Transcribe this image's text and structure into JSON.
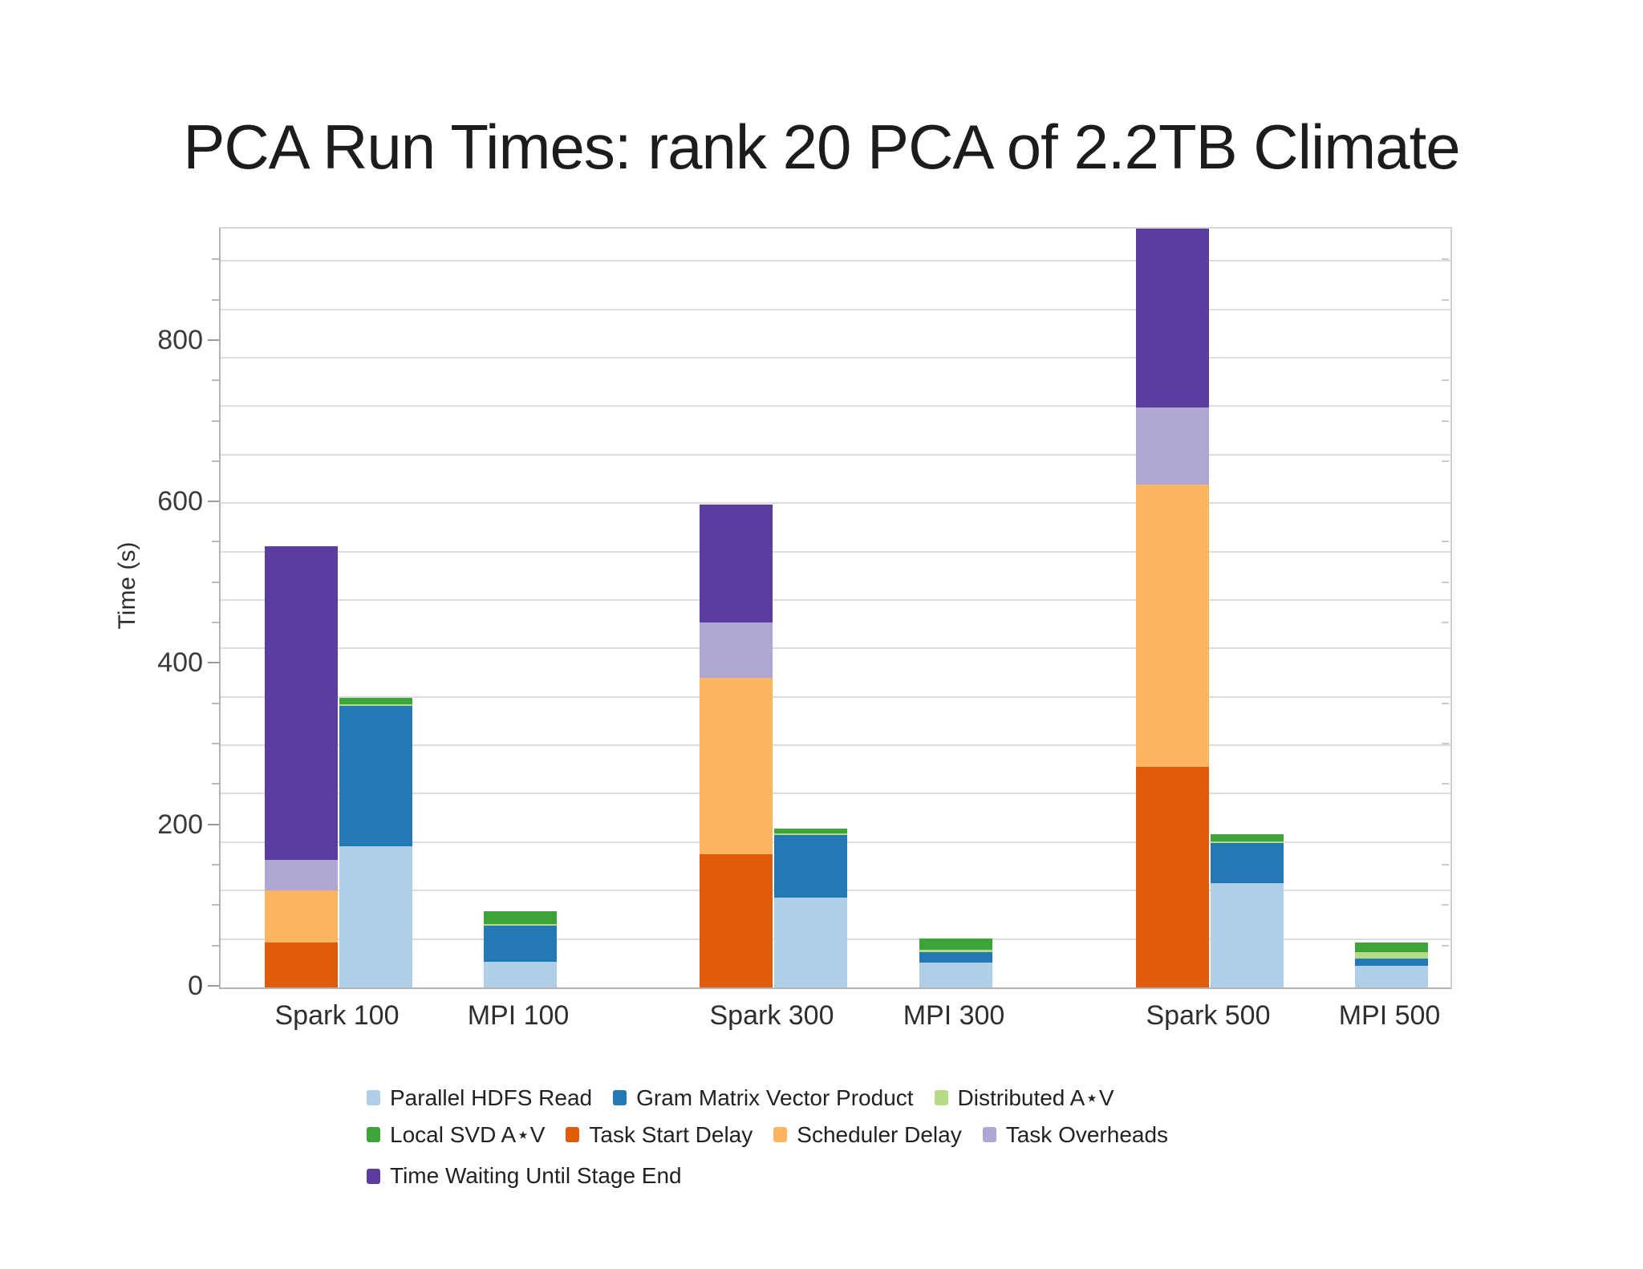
{
  "title": "PCA Run Times: rank 20 PCA of 2.2TB Climate",
  "y_axis": {
    "label": "Time (s)",
    "tick_values": [
      0,
      200,
      400,
      600,
      800
    ],
    "tick_labels": [
      "0",
      "200",
      "400",
      "600",
      "800"
    ],
    "minor_tick_interval": 50,
    "max": 940
  },
  "chart_data": {
    "type": "bar",
    "stacked": true,
    "title": "PCA Run Times: rank 20 PCA of 2.2TB Climate",
    "xlabel": "",
    "ylabel": "Time (s)",
    "ylim": [
      0,
      940
    ],
    "grid": "horizontal, light gray, every 60 s",
    "grid_interval": 60,
    "legend_position": "bottom",
    "series": [
      {
        "id": "parallel_hdfs_read",
        "label": "Parallel HDFS Read",
        "color": "#aecfe6"
      },
      {
        "id": "gram_matrix_vector_product",
        "label": "Gram Matrix Vector Product",
        "color": "#2379b5"
      },
      {
        "id": "distributed_av",
        "label": "Distributed A⋆V",
        "color": "#b5dc85"
      },
      {
        "id": "local_svd_av",
        "label": "Local SVD A⋆V",
        "color": "#3da43a"
      },
      {
        "id": "task_start_delay",
        "label": "Task Start Delay",
        "color": "#e05c0a"
      },
      {
        "id": "scheduler_delay",
        "label": "Scheduler Delay",
        "color": "#fbb45f"
      },
      {
        "id": "task_overheads",
        "label": "Task Overheads",
        "color": "#aea6d3"
      },
      {
        "id": "time_waiting",
        "label": "Time Waiting Until Stage End",
        "color": "#5b3c9f"
      }
    ],
    "categories": [
      "Spark 100",
      "MPI 100",
      "Spark 300",
      "MPI 300",
      "Spark 500",
      "MPI 500"
    ],
    "bars_by_category": [
      {
        "category": "Spark 100",
        "bars": [
          {
            "role": "spark-overhead-stack",
            "total": 547,
            "segments": [
              {
                "series": "task_start_delay",
                "value": 56
              },
              {
                "series": "scheduler_delay",
                "value": 64
              },
              {
                "series": "task_overheads",
                "value": 38
              },
              {
                "series": "time_waiting",
                "value": 389
              }
            ]
          },
          {
            "role": "compute-stack",
            "total": 359,
            "segments": [
              {
                "series": "parallel_hdfs_read",
                "value": 175
              },
              {
                "series": "gram_matrix_vector_product",
                "value": 174
              },
              {
                "series": "distributed_av",
                "value": 2
              },
              {
                "series": "local_svd_av",
                "value": 8
              }
            ]
          }
        ]
      },
      {
        "category": "MPI 100",
        "bars": [
          {
            "role": "compute-stack",
            "total": 94,
            "segments": [
              {
                "series": "parallel_hdfs_read",
                "value": 32
              },
              {
                "series": "gram_matrix_vector_product",
                "value": 45
              },
              {
                "series": "distributed_av",
                "value": 2
              },
              {
                "series": "local_svd_av",
                "value": 15
              }
            ]
          }
        ]
      },
      {
        "category": "Spark 300",
        "bars": [
          {
            "role": "spark-overhead-stack",
            "total": 598,
            "segments": [
              {
                "series": "task_start_delay",
                "value": 165
              },
              {
                "series": "scheduler_delay",
                "value": 219
              },
              {
                "series": "task_overheads",
                "value": 68
              },
              {
                "series": "time_waiting",
                "value": 146
              }
            ]
          },
          {
            "role": "compute-stack",
            "total": 197,
            "segments": [
              {
                "series": "parallel_hdfs_read",
                "value": 111
              },
              {
                "series": "gram_matrix_vector_product",
                "value": 78
              },
              {
                "series": "distributed_av",
                "value": 2
              },
              {
                "series": "local_svd_av",
                "value": 6
              }
            ]
          }
        ]
      },
      {
        "category": "MPI 300",
        "bars": [
          {
            "role": "compute-stack",
            "total": 61,
            "segments": [
              {
                "series": "parallel_hdfs_read",
                "value": 31
              },
              {
                "series": "gram_matrix_vector_product",
                "value": 13
              },
              {
                "series": "distributed_av",
                "value": 3
              },
              {
                "series": "local_svd_av",
                "value": 14
              }
            ]
          }
        ]
      },
      {
        "category": "Spark 500",
        "bars": [
          {
            "role": "spark-overhead-stack",
            "total": 941,
            "clipped_at_top": true,
            "segments": [
              {
                "series": "task_start_delay",
                "value": 273
              },
              {
                "series": "scheduler_delay",
                "value": 350
              },
              {
                "series": "task_overheads",
                "value": 95
              },
              {
                "series": "time_waiting",
                "value": 223
              }
            ]
          },
          {
            "role": "compute-stack",
            "total": 190,
            "segments": [
              {
                "series": "parallel_hdfs_read",
                "value": 129
              },
              {
                "series": "gram_matrix_vector_product",
                "value": 50
              },
              {
                "series": "distributed_av",
                "value": 2
              },
              {
                "series": "local_svd_av",
                "value": 9
              }
            ]
          }
        ]
      },
      {
        "category": "MPI 500",
        "bars": [
          {
            "role": "compute-stack",
            "total": 56,
            "segments": [
              {
                "series": "parallel_hdfs_read",
                "value": 27
              },
              {
                "series": "gram_matrix_vector_product",
                "value": 9
              },
              {
                "series": "distributed_av",
                "value": 8
              },
              {
                "series": "local_svd_av",
                "value": 12
              }
            ]
          }
        ]
      }
    ]
  },
  "legend": {
    "rows": [
      [
        "parallel_hdfs_read",
        "gram_matrix_vector_product",
        "distributed_av"
      ],
      [
        "local_svd_av",
        "task_start_delay",
        "scheduler_delay",
        "task_overheads"
      ],
      [
        "time_waiting"
      ]
    ]
  }
}
